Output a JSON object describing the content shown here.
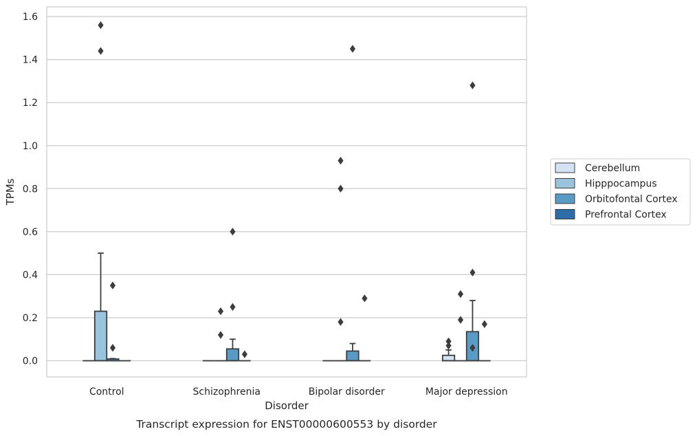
{
  "chart_data": {
    "type": "box",
    "title": "",
    "caption": "Transcript expression for ENST00000600553 by disorder",
    "xlabel": "Disorder",
    "ylabel": "TPMs",
    "ylim": [
      -0.075,
      1.645
    ],
    "yticks": [
      "0.0",
      "0.2",
      "0.4",
      "0.6",
      "0.8",
      "1.0",
      "1.2",
      "1.4",
      "1.6"
    ],
    "ytick_values": [
      0,
      0.2,
      0.4,
      0.6,
      0.8,
      1.0,
      1.2,
      1.4,
      1.6
    ],
    "grid": true,
    "legend_position": "right",
    "categories": [
      "Control",
      "Schizophrenia",
      "Bipolar disorder",
      "Major depression"
    ],
    "series": [
      {
        "name": "Cerebellum",
        "color": "#d3e3f3",
        "boxes": [
          {
            "q1": 0,
            "median": 0,
            "q3": 0,
            "whisker_low": 0,
            "whisker_high": 0,
            "outliers": []
          },
          {
            "q1": 0,
            "median": 0,
            "q3": 0,
            "whisker_low": 0,
            "whisker_high": 0,
            "outliers": []
          },
          {
            "q1": 0,
            "median": 0,
            "q3": 0,
            "whisker_low": 0,
            "whisker_high": 0,
            "outliers": []
          },
          {
            "q1": 0,
            "median": 0,
            "q3": 0.025,
            "whisker_low": 0,
            "whisker_high": 0.05,
            "outliers": [
              0.07,
              0.09
            ]
          }
        ]
      },
      {
        "name": "Hipppocampus",
        "color": "#9ac3dd",
        "boxes": [
          {
            "q1": 0,
            "median": 0,
            "q3": 0.23,
            "whisker_low": 0,
            "whisker_high": 0.5,
            "outliers": [
              1.44,
              1.56
            ]
          },
          {
            "q1": 0,
            "median": 0,
            "q3": 0,
            "whisker_low": 0,
            "whisker_high": 0,
            "outliers": [
              0.12,
              0.23
            ]
          },
          {
            "q1": 0,
            "median": 0,
            "q3": 0,
            "whisker_low": 0,
            "whisker_high": 0,
            "outliers": [
              0.93,
              0.8,
              0.18
            ]
          },
          {
            "q1": 0,
            "median": 0,
            "q3": 0,
            "whisker_low": 0,
            "whisker_high": 0,
            "outliers": [
              0.31,
              0.19
            ]
          }
        ]
      },
      {
        "name": "Orbitofontal Cortex",
        "color": "#5a9bc6",
        "boxes": [
          {
            "q1": 0,
            "median": 0,
            "q3": 0.008,
            "whisker_low": 0,
            "whisker_high": 0.01,
            "outliers": [
              0.06,
              0.35
            ]
          },
          {
            "q1": 0,
            "median": 0,
            "q3": 0.055,
            "whisker_low": 0,
            "whisker_high": 0.1,
            "outliers": [
              0.25,
              0.6
            ]
          },
          {
            "q1": 0,
            "median": 0,
            "q3": 0.045,
            "whisker_low": 0,
            "whisker_high": 0.08,
            "outliers": [
              1.45
            ]
          },
          {
            "q1": 0,
            "median": 0,
            "q3": 0.135,
            "whisker_low": 0,
            "whisker_high": 0.28,
            "outliers": [
              0.06,
              0.41,
              1.28
            ]
          }
        ]
      },
      {
        "name": "Prefrontal Cortex",
        "color": "#2d6ca6",
        "boxes": [
          {
            "q1": 0,
            "median": 0,
            "q3": 0,
            "whisker_low": 0,
            "whisker_high": 0,
            "outliers": []
          },
          {
            "q1": 0,
            "median": 0,
            "q3": 0,
            "whisker_low": 0,
            "whisker_high": 0,
            "outliers": [
              0.03
            ]
          },
          {
            "q1": 0,
            "median": 0,
            "q3": 0,
            "whisker_low": 0,
            "whisker_high": 0,
            "outliers": [
              0.29
            ]
          },
          {
            "q1": 0,
            "median": 0,
            "q3": 0,
            "whisker_low": 0,
            "whisker_high": 0,
            "outliers": [
              0.17
            ]
          }
        ]
      }
    ]
  }
}
